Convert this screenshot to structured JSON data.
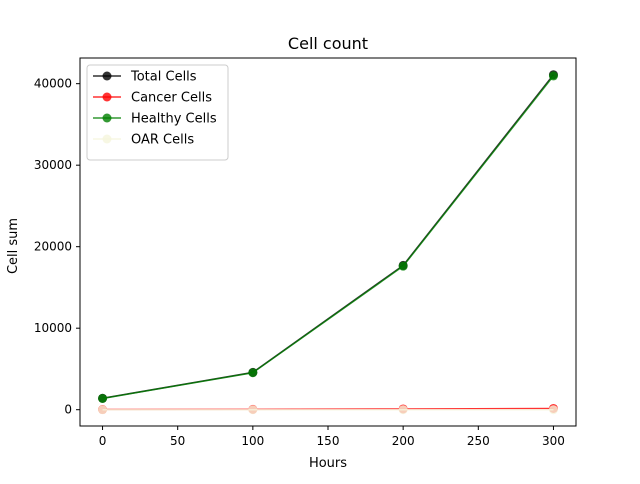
{
  "chart_data": {
    "type": "line",
    "title": "Cell count",
    "xlabel": "Hours",
    "ylabel": "Cell sum",
    "xlim": [
      -15,
      315
    ],
    "ylim": [
      -2000,
      43150
    ],
    "xticks": [
      0,
      50,
      100,
      150,
      200,
      250,
      300
    ],
    "yticks": [
      0,
      10000,
      20000,
      30000,
      40000
    ],
    "grid": false,
    "legend_position": "upper-left",
    "x": [
      0,
      100,
      200,
      300
    ],
    "series": [
      {
        "name": "Total Cells",
        "color": "#000000",
        "values": [
          1400,
          4580,
          17700,
          41100
        ]
      },
      {
        "name": "Cancer Cells",
        "color": "#ff0000",
        "values": [
          20,
          40,
          90,
          150
        ]
      },
      {
        "name": "Healthy Cells",
        "color": "#008000",
        "values": [
          1380,
          4540,
          17610,
          40950
        ]
      },
      {
        "name": "OAR Cells",
        "color": "#f5f5dc",
        "values": [
          0,
          0,
          0,
          0
        ]
      }
    ]
  }
}
